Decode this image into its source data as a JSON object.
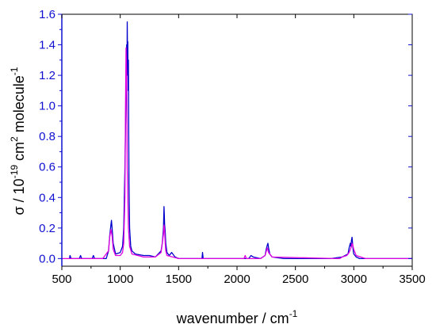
{
  "chart_data": {
    "type": "line",
    "xlabel": {
      "text": "wavenumber / cm",
      "sup": "-1"
    },
    "ylabel": {
      "p1": "σ / 10",
      "s1": "-19",
      "p2": " cm",
      "s2": "2",
      "p3": " molecule",
      "s3": "-1"
    },
    "xlim": [
      500,
      3500
    ],
    "ylim": [
      -0.05,
      1.6
    ],
    "xticks": [
      500,
      1000,
      1500,
      2000,
      2500,
      3000,
      3500
    ],
    "xtick_labels": [
      "500",
      "1000",
      "1500",
      "2000",
      "2500",
      "3000",
      "3500"
    ],
    "yticks": [
      0.0,
      0.2,
      0.4,
      0.6,
      0.8,
      1.0,
      1.2,
      1.4,
      1.6
    ],
    "ytick_labels": [
      "0.0",
      "0.2",
      "0.4",
      "0.6",
      "0.8",
      "1.0",
      "1.2",
      "1.4",
      "1.6"
    ],
    "grid": false,
    "colors": {
      "axis": "#1010d0",
      "frame": "#000000",
      "series_blue": "#0000cc",
      "series_magenta": "#e000e0"
    },
    "series": [
      {
        "color": "#0000cc",
        "x": [
          565,
          570,
          575,
          580,
          650,
          660,
          670,
          760,
          770,
          780,
          880,
          900,
          910,
          920,
          925,
          930,
          940,
          960,
          1000,
          1020,
          1030,
          1040,
          1050,
          1055,
          1058,
          1060,
          1063,
          1065,
          1068,
          1070,
          1073,
          1075,
          1080,
          1090,
          1100,
          1130,
          1200,
          1250,
          1300,
          1350,
          1360,
          1370,
          1375,
          1380,
          1385,
          1390,
          1400,
          1420,
          1440,
          1450,
          1460,
          1470,
          1500,
          1600,
          1700,
          1705,
          1710,
          1800,
          1900,
          2000,
          2100,
          2120,
          2140,
          2200,
          2240,
          2250,
          2260,
          2265,
          2270,
          2280,
          2300,
          2400,
          2500,
          2600,
          2700,
          2800,
          2900,
          2950,
          2960,
          2970,
          2975,
          2980,
          2985,
          2990,
          2995,
          3000,
          3010,
          3020,
          3050,
          3100,
          3200,
          3300,
          3400,
          3500
        ],
        "y": [
          0.0,
          0.02,
          0.01,
          0.0,
          0.0,
          0.02,
          0.0,
          0.0,
          0.02,
          0.0,
          0.0,
          0.05,
          0.15,
          0.22,
          0.25,
          0.2,
          0.1,
          0.03,
          0.04,
          0.08,
          0.2,
          0.6,
          1.1,
          1.4,
          1.2,
          1.55,
          1.3,
          1.42,
          1.1,
          1.3,
          0.8,
          0.5,
          0.2,
          0.08,
          0.05,
          0.03,
          0.02,
          0.02,
          0.01,
          0.05,
          0.1,
          0.2,
          0.34,
          0.22,
          0.18,
          0.1,
          0.04,
          0.02,
          0.04,
          0.03,
          0.02,
          0.01,
          0.0,
          0.0,
          0.0,
          0.04,
          0.0,
          0.0,
          0.0,
          0.0,
          0.0,
          0.02,
          0.01,
          0.0,
          0.02,
          0.06,
          0.09,
          0.1,
          0.07,
          0.03,
          0.01,
          0.0,
          0.0,
          0.0,
          0.0,
          0.0,
          0.01,
          0.03,
          0.07,
          0.1,
          0.08,
          0.12,
          0.14,
          0.09,
          0.05,
          0.03,
          0.02,
          0.01,
          0.0,
          0.0,
          0.0,
          0.0,
          0.0,
          0.0
        ]
      },
      {
        "color": "#e000e0",
        "x": [
          500,
          700,
          850,
          900,
          910,
          920,
          930,
          940,
          960,
          1000,
          1020,
          1030,
          1040,
          1045,
          1050,
          1055,
          1060,
          1070,
          1080,
          1100,
          1200,
          1300,
          1350,
          1360,
          1370,
          1375,
          1380,
          1385,
          1390,
          1400,
          1450,
          1500,
          2000,
          2060,
          2070,
          2080,
          2200,
          2240,
          2255,
          2260,
          2270,
          2300,
          2850,
          2880,
          2900,
          2940,
          2960,
          2970,
          2980,
          2985,
          2990,
          3000,
          3020,
          3100,
          3500
        ],
        "y": [
          0.0,
          0.0,
          0.0,
          0.05,
          0.14,
          0.19,
          0.15,
          0.06,
          0.02,
          0.02,
          0.04,
          0.1,
          0.4,
          1.0,
          1.38,
          1.2,
          0.6,
          0.2,
          0.08,
          0.03,
          0.01,
          0.01,
          0.04,
          0.1,
          0.16,
          0.22,
          0.18,
          0.1,
          0.05,
          0.02,
          0.01,
          0.0,
          0.0,
          0.0,
          0.02,
          0.0,
          0.0,
          0.02,
          0.06,
          0.07,
          0.04,
          0.01,
          0.0,
          0.0,
          0.01,
          0.02,
          0.04,
          0.06,
          0.08,
          0.1,
          0.09,
          0.06,
          0.02,
          0.0,
          0.0
        ]
      }
    ]
  }
}
